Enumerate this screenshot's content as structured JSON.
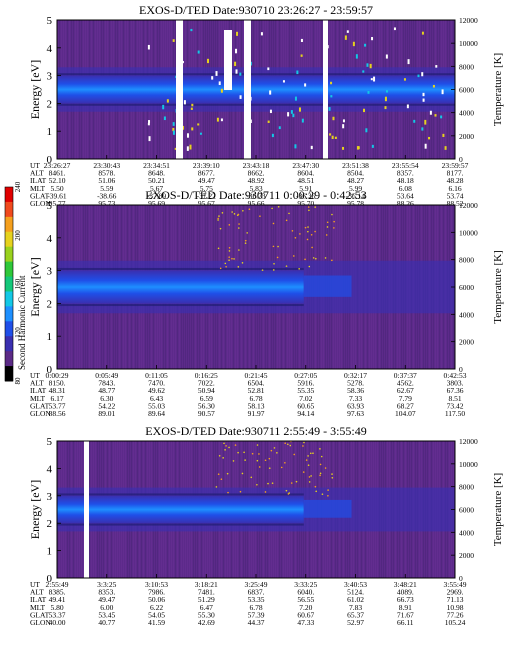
{
  "colorbar": {
    "label": "Second Harmonic Current",
    "ticks": [
      "80",
      "120",
      "160",
      "200",
      "240"
    ],
    "colors": [
      "#000000",
      "#5b2a86",
      "#3a2fb0",
      "#1f4fe8",
      "#1e90ff",
      "#13c8e6",
      "#14c87a",
      "#2fc83a",
      "#9ad21e",
      "#e6d21e",
      "#f5a01e",
      "#f04a1e",
      "#e00000"
    ]
  },
  "panels": [
    {
      "title": "EXOS-D/TED   Date:930710  23:26:27 - 23:59:57",
      "ylabel": "Energy [eV]",
      "y2label": "Temperature [K]",
      "yticks": [
        "0",
        "1",
        "2",
        "3",
        "4",
        "5"
      ],
      "y2ticks": [
        "0",
        "2000",
        "4000",
        "6000",
        "8000",
        "10000",
        "12000"
      ],
      "row_labels": [
        "UT",
        "ALT",
        "ILAT",
        "MLT",
        "GLAT",
        "GLON"
      ],
      "columns": [
        [
          "23:26:27",
          "8461.",
          "52.10",
          "5.50",
          "-39.61",
          "95.77"
        ],
        [
          "23:30:43",
          "8578.",
          "51.06",
          "5.59",
          "-38.66",
          "95.73"
        ],
        [
          "23:34:51",
          "8648.",
          "50.21",
          "5.67",
          "-37.89",
          "95.69"
        ],
        [
          "23:39:10",
          "8677.",
          "49.47",
          "5.75",
          "-37.22",
          "95.67"
        ],
        [
          "23:43:18",
          "8662.",
          "48.92",
          "5.83",
          "-36.73",
          "95.66"
        ],
        [
          "23:47:30",
          "8604.",
          "48.51",
          "5.91",
          "-36.36",
          "95.70"
        ],
        [
          "23:51:38",
          "8504.",
          "48.27",
          "5.99",
          "-36.14",
          "95.78"
        ],
        [
          "23:55:54",
          "8357.",
          "48.18",
          "6.08",
          "53.64",
          "88.26"
        ],
        [
          "23:59:57",
          "8177.",
          "48.28",
          "6.16",
          "53.74",
          "88.52"
        ]
      ]
    },
    {
      "title": "EXOS-D/TED   Date:930711  0:00:29 - 0:42:53",
      "ylabel": "Energy [eV]",
      "y2label": "Temperature [K]",
      "yticks": [
        "0",
        "1",
        "2",
        "3",
        "4",
        "5"
      ],
      "y2ticks": [
        "0",
        "2000",
        "4000",
        "6000",
        "8000",
        "10000",
        "12000"
      ],
      "row_labels": [
        "UT",
        "ALT",
        "ILAT",
        "MLT",
        "GLAT",
        "GLON"
      ],
      "columns": [
        [
          "0:00:29",
          "8150.",
          "48.31",
          "6.17",
          "53.77",
          "88.56"
        ],
        [
          "0:05:49",
          "7843.",
          "48.77",
          "6.30",
          "54.22",
          "89.01"
        ],
        [
          "0:11:05",
          "7470.",
          "49.62",
          "6.43",
          "55.03",
          "89.64"
        ],
        [
          "0:16:25",
          "7022.",
          "50.94",
          "6.59",
          "56.30",
          "90.57"
        ],
        [
          "0:21:45",
          "6504.",
          "52.81",
          "6.78",
          "58.13",
          "91.97"
        ],
        [
          "0:27:05",
          "5916.",
          "55.35",
          "7.02",
          "60.65",
          "94.14"
        ],
        [
          "0:32:17",
          "5278.",
          "58.36",
          "7.33",
          "63.93",
          "97.63"
        ],
        [
          "0:37:37",
          "4562.",
          "62.67",
          "7.79",
          "68.27",
          "104.07"
        ],
        [
          "0:42:53",
          "3803.",
          "67.36",
          "8.51",
          "73.42",
          "117.50"
        ]
      ]
    },
    {
      "title": "EXOS-D/TED   Date:930711  2:55:49 - 3:55:49",
      "ylabel": "Energy [eV]",
      "y2label": "Temperature [K]",
      "yticks": [
        "0",
        "1",
        "2",
        "3",
        "4",
        "5"
      ],
      "y2ticks": [
        "0",
        "2000",
        "4000",
        "6000",
        "8000",
        "10000",
        "12000"
      ],
      "row_labels": [
        "UT",
        "ALT",
        "ILAT",
        "MLT",
        "GLAT",
        "GLON"
      ],
      "columns": [
        [
          "2:55:49",
          "8385.",
          "49.41",
          "5.80",
          "53.37",
          "40.00"
        ],
        [
          "3:3:25",
          "8353.",
          "49.47",
          "6.00",
          "53.45",
          "40.77"
        ],
        [
          "3:10:53",
          "7986.",
          "50.06",
          "6.22",
          "54.05",
          "41.59"
        ],
        [
          "3:18:21",
          "7481.",
          "51.29",
          "6.47",
          "55.30",
          "42.69"
        ],
        [
          "3:25:49",
          "6837.",
          "53.35",
          "6.78",
          "57.39",
          "44.37"
        ],
        [
          "3:33:25",
          "6040.",
          "56.55",
          "7.20",
          "60.67",
          "47.33"
        ],
        [
          "3:40:53",
          "5124.",
          "61.02",
          "7.83",
          "65.37",
          "52.97"
        ],
        [
          "3:48:21",
          "4089.",
          "66.73",
          "8.91",
          "71.67",
          "66.11"
        ],
        [
          "3:55:49",
          "2969.",
          "71.13",
          "10.98",
          "77.26",
          "105.24"
        ]
      ]
    }
  ],
  "chart_data": [
    {
      "type": "heatmap",
      "title": "EXOS-D/TED   Date:930710  23:26:27 - 23:59:57",
      "xlabel": "UT",
      "ylabel": "Energy [eV]",
      "y2label": "Temperature [K]",
      "x": [
        "23:26:27",
        "23:30:43",
        "23:34:51",
        "23:39:10",
        "23:43:18",
        "23:47:30",
        "23:51:38",
        "23:55:54",
        "23:59:57"
      ],
      "ylim": [
        0,
        5
      ],
      "y2lim": [
        0,
        12000
      ],
      "band_center_ev": 2.5,
      "data_gaps_ut": [
        "23:35:20",
        "23:40:40",
        "23:47:40"
      ],
      "colorbar_range": [
        80,
        240
      ]
    },
    {
      "type": "heatmap",
      "title": "EXOS-D/TED   Date:930711  0:00:29 - 0:42:53",
      "xlabel": "UT",
      "ylabel": "Energy [eV]",
      "y2label": "Temperature [K]",
      "x": [
        "0:00:29",
        "0:05:49",
        "0:11:05",
        "0:16:25",
        "0:21:45",
        "0:27:05",
        "0:32:17",
        "0:37:37",
        "0:42:53"
      ],
      "ylim": [
        0,
        5
      ],
      "y2lim": [
        0,
        12000
      ],
      "band_center_ev": 2.5,
      "colorbar_range": [
        80,
        240
      ]
    },
    {
      "type": "heatmap",
      "title": "EXOS-D/TED   Date:930711  2:55:49 - 3:55:49",
      "xlabel": "UT",
      "ylabel": "Energy [eV]",
      "y2label": "Temperature [K]",
      "x": [
        "2:55:49",
        "3:3:25",
        "3:10:53",
        "3:18:21",
        "3:25:49",
        "3:33:25",
        "3:40:53",
        "3:48:21",
        "3:55:49"
      ],
      "ylim": [
        0,
        5
      ],
      "y2lim": [
        0,
        12000
      ],
      "band_center_ev": 2.5,
      "data_gaps_ut": [
        "2:57:00"
      ],
      "colorbar_range": [
        80,
        240
      ]
    }
  ]
}
